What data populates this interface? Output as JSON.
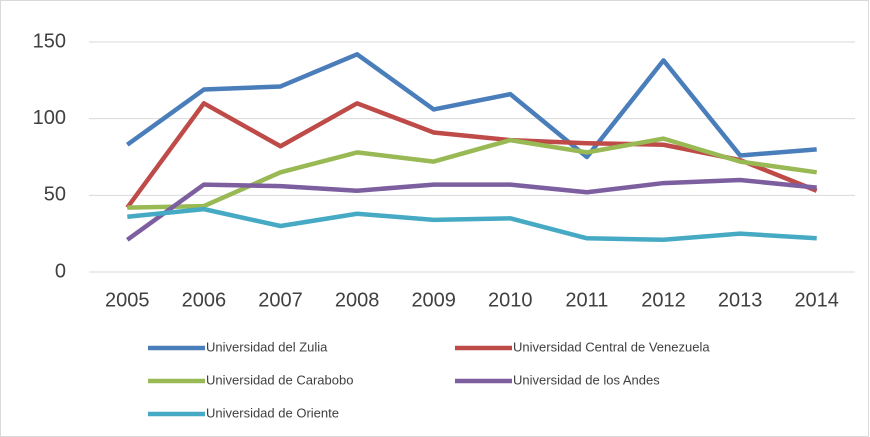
{
  "chart_data": {
    "type": "line",
    "categories": [
      "2005",
      "2006",
      "2007",
      "2008",
      "2009",
      "2010",
      "2011",
      "2012",
      "2013",
      "2014"
    ],
    "series": [
      {
        "name": "Universidad del Zulia",
        "color": "#4a7ebb",
        "values": [
          83,
          119,
          121,
          142,
          106,
          116,
          75,
          138,
          76,
          80
        ]
      },
      {
        "name": "Universidad Central de Venezuela",
        "color": "#be4b48",
        "values": [
          42,
          110,
          82,
          110,
          91,
          86,
          84,
          83,
          73,
          53
        ]
      },
      {
        "name": "Universidad de Carabobo",
        "color": "#98b954",
        "values": [
          42,
          43,
          65,
          78,
          72,
          86,
          78,
          87,
          72,
          65
        ]
      },
      {
        "name": "Universidad de los Andes",
        "color": "#7d5fa0",
        "values": [
          21,
          57,
          56,
          53,
          57,
          57,
          52,
          58,
          60,
          55
        ]
      },
      {
        "name": "Universidad de Oriente",
        "color": "#46aac5",
        "values": [
          36,
          41,
          30,
          38,
          34,
          35,
          22,
          21,
          25,
          22
        ]
      }
    ],
    "ylim": [
      0,
      150
    ],
    "yticks": [
      0,
      50,
      100,
      150
    ],
    "grid": true
  }
}
